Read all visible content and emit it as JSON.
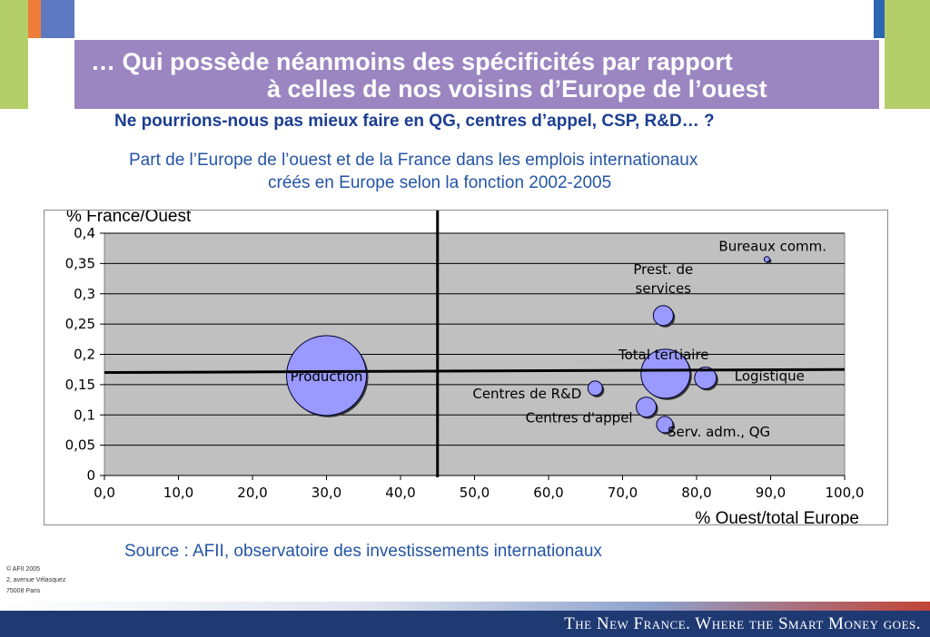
{
  "header": {
    "title_line_1": "… Qui possède néanmoins des spécificités par rapport",
    "title_line_2": "à celles de nos voisins d’Europe de l’ouest",
    "subtitle": "Ne pourrions-nous pas mieux faire en QG, centres d’appel, CSP, R&D… ?"
  },
  "colors": {
    "title_band": "#9b86c1",
    "accent_green": "#b4cf6a",
    "accent_orange": "#ee7d3a",
    "accent_blue": "#5e79c2",
    "text_blue": "#2455a4",
    "footer_navy": "#1f3a73",
    "bubble_fill": "#9999ff",
    "plot_bg": "#c0c0c0"
  },
  "chart_data": {
    "type": "scatter",
    "title_line_1": "Part de l’Europe de l’ouest et de la France dans les emplois internationaux",
    "title_line_2": "créés en Europe selon la fonction 2002-2005",
    "xlabel": "% Ouest/total Europe",
    "ylabel": "% France/Ouest",
    "xlim": [
      0,
      100
    ],
    "ylim": [
      0,
      0.4
    ],
    "x_ticks": [
      0,
      10,
      20,
      30,
      40,
      50,
      60,
      70,
      80,
      90,
      100
    ],
    "x_tick_labels": [
      "0,0",
      "10,0",
      "20,0",
      "30,0",
      "40,0",
      "50,0",
      "60,0",
      "70,0",
      "80,0",
      "90,0",
      "100,0"
    ],
    "y_ticks": [
      0,
      0.05,
      0.1,
      0.15,
      0.2,
      0.25,
      0.3,
      0.35,
      0.4
    ],
    "y_tick_labels": [
      "0",
      "0,05",
      "0,1",
      "0,15",
      "0,2",
      "0,25",
      "0,3",
      "0,35",
      "0,4"
    ],
    "grid": true,
    "points": [
      {
        "label": "Production",
        "x": 30,
        "y": 0.165,
        "size": 44
      },
      {
        "label": "Total tertiaire",
        "x": 75.8,
        "y": 0.168,
        "size": 27
      },
      {
        "label": "Prest. de services",
        "label_lines": [
          "Prest. de",
          "services"
        ],
        "x": 75.5,
        "y": 0.264,
        "size": 11
      },
      {
        "label": "Logistique",
        "x": 81.2,
        "y": 0.161,
        "size": 12
      },
      {
        "label": "Centres de R&D",
        "x": 66.3,
        "y": 0.144,
        "size": 8
      },
      {
        "label": "Centres d'appel",
        "x": 73.2,
        "y": 0.113,
        "size": 11
      },
      {
        "label": "Serv. adm., QG",
        "x": 75.7,
        "y": 0.084,
        "size": 9
      },
      {
        "label": "Bureaux comm.",
        "x": 89.5,
        "y": 0.357,
        "size": 3
      }
    ],
    "reference_lines": {
      "vertical_x": 45,
      "horizontal_y_start": 0.17,
      "horizontal_y_end": 0.175
    }
  },
  "source": "Source : AFII, observatoire des investissements internationaux",
  "address": [
    "© AFII 2005",
    "2, avenue Vélasquez",
    "75008 Paris"
  ],
  "footer": {
    "tagline": "The New France. Where the Smart Money goes."
  }
}
